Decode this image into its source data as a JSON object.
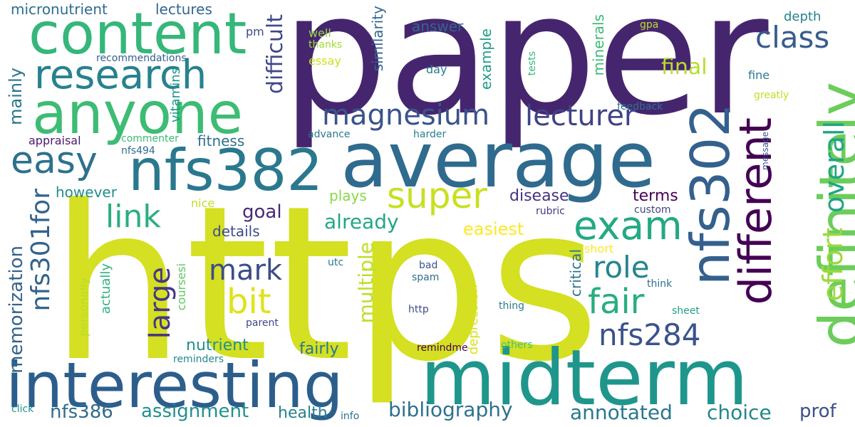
{
  "words": [
    {
      "text": "paper",
      "color": "#46256f"
    },
    {
      "text": "https",
      "color": "#d4e021"
    },
    {
      "text": "average",
      "color": "#2f6b8e"
    },
    {
      "text": "midterm",
      "color": "#1f968b"
    },
    {
      "text": "interesting",
      "color": "#2c5e8c"
    },
    {
      "text": "definitely",
      "color": "#6ccd5a"
    },
    {
      "text": "content",
      "color": "#35b779"
    },
    {
      "text": "anyone",
      "color": "#3dbc74"
    },
    {
      "text": "nfs382",
      "color": "#2a788e"
    },
    {
      "text": "research",
      "color": "#26828e"
    },
    {
      "text": "nfs302",
      "color": "#34608d"
    },
    {
      "text": "different",
      "color": "#440154"
    },
    {
      "text": "super",
      "color": "#c8e020"
    },
    {
      "text": "exam",
      "color": "#23a983"
    },
    {
      "text": "easy",
      "color": "#2d718e"
    },
    {
      "text": "magnesium",
      "color": "#3a538b"
    },
    {
      "text": "lecturer",
      "color": "#404387"
    },
    {
      "text": "class",
      "color": "#365d8d"
    },
    {
      "text": "link",
      "color": "#29af7f"
    },
    {
      "text": "mark",
      "color": "#3d4d8a"
    },
    {
      "text": "bit",
      "color": "#e1e21a"
    },
    {
      "text": "fair",
      "color": "#28ae80"
    },
    {
      "text": "role",
      "color": "#25858e"
    },
    {
      "text": "large",
      "color": "#453882"
    },
    {
      "text": "nfs284",
      "color": "#3b528b"
    },
    {
      "text": "effort",
      "color": "#9bd93c"
    },
    {
      "text": "overall",
      "color": "#20a486"
    },
    {
      "text": "nfs301for",
      "color": "#33638d"
    },
    {
      "text": "final",
      "color": "#b5de2b"
    },
    {
      "text": "already",
      "color": "#22a785"
    },
    {
      "text": "multiple",
      "color": "#bddf26"
    },
    {
      "text": "memorization",
      "color": "#33638d"
    },
    {
      "text": "mainly",
      "color": "#2a768e"
    },
    {
      "text": "difficult",
      "color": "#3f4889"
    },
    {
      "text": "bibliography",
      "color": "#2c728e"
    },
    {
      "text": "annotated",
      "color": "#2a768e"
    },
    {
      "text": "choice",
      "color": "#24868e"
    },
    {
      "text": "assignment",
      "color": "#21918c"
    },
    {
      "text": "nfs386",
      "color": "#2f6c8e"
    },
    {
      "text": "prof",
      "color": "#3d4e8a"
    },
    {
      "text": "health",
      "color": "#27808e"
    },
    {
      "text": "fairly",
      "color": "#2a768e"
    },
    {
      "text": "nutrient",
      "color": "#20928c"
    },
    {
      "text": "easiest",
      "color": "#fde725"
    },
    {
      "text": "goal",
      "color": "#482878"
    },
    {
      "text": "details",
      "color": "#3e4c8a"
    },
    {
      "text": "however",
      "color": "#228d8d"
    },
    {
      "text": "fitness",
      "color": "#2e6f8e"
    },
    {
      "text": "plays",
      "color": "#8bd646"
    },
    {
      "text": "disease",
      "color": "#463480"
    },
    {
      "text": "terms",
      "color": "#440154"
    },
    {
      "text": "answer",
      "color": "#31668e"
    },
    {
      "text": "lectures",
      "color": "#32658e"
    },
    {
      "text": "micronutrient",
      "color": "#2e6d8e"
    },
    {
      "text": "similarity",
      "color": "#31668e"
    },
    {
      "text": "example",
      "color": "#1f9e89"
    },
    {
      "text": "minerals",
      "color": "#3cbb75"
    },
    {
      "text": "vitamins",
      "color": "#1f958b"
    },
    {
      "text": "depth",
      "color": "#26828e"
    },
    {
      "text": "critical",
      "color": "#2c728e"
    },
    {
      "text": "depression",
      "color": "#d8e219"
    },
    {
      "text": "actually",
      "color": "#2db27d"
    },
    {
      "text": "personally",
      "color": "#b8de29"
    },
    {
      "text": "coursesi",
      "color": "#5ec962"
    },
    {
      "text": "pm",
      "color": "#3e4a89"
    },
    {
      "text": "well",
      "color": "#95d840"
    },
    {
      "text": "thanks",
      "color": "#a2da37"
    },
    {
      "text": "essay",
      "color": "#cae11f"
    },
    {
      "text": "gpa",
      "color": "#bade28"
    },
    {
      "text": "day",
      "color": "#287c8e"
    },
    {
      "text": "tests",
      "color": "#35b779"
    },
    {
      "text": "fine",
      "color": "#2a788e"
    },
    {
      "text": "greatly",
      "color": "#bddf26"
    },
    {
      "text": "feedback",
      "color": "#2c728e"
    },
    {
      "text": "message",
      "color": "#3b528b"
    },
    {
      "text": "recommendations",
      "color": "#355f8d"
    },
    {
      "text": "appraisal",
      "color": "#481a6c"
    },
    {
      "text": "commenter",
      "color": "#3aba76"
    },
    {
      "text": "nfs494",
      "color": "#2f6c8e"
    },
    {
      "text": "advance",
      "color": "#2a778e"
    },
    {
      "text": "harder",
      "color": "#277f8e"
    },
    {
      "text": "nice",
      "color": "#bddf26"
    },
    {
      "text": "rubric",
      "color": "#443a83"
    },
    {
      "text": "custom",
      "color": "#414487"
    },
    {
      "text": "short",
      "color": "#fde725"
    },
    {
      "text": "utc",
      "color": "#2a788e"
    },
    {
      "text": "bad",
      "color": "#39568c"
    },
    {
      "text": "spam",
      "color": "#2d708e"
    },
    {
      "text": "think",
      "color": "#2e6e8e"
    },
    {
      "text": "sheet",
      "color": "#1fa088"
    },
    {
      "text": "http",
      "color": "#3e4a89"
    },
    {
      "text": "thing",
      "color": "#287d8e"
    },
    {
      "text": "parent",
      "color": "#3f4788"
    },
    {
      "text": "remindme",
      "color": "#440154"
    },
    {
      "text": "others",
      "color": "#4ac16d"
    },
    {
      "text": "reminders",
      "color": "#24868e"
    },
    {
      "text": "click",
      "color": "#21918c"
    },
    {
      "text": "info",
      "color": "#2c728e"
    }
  ]
}
